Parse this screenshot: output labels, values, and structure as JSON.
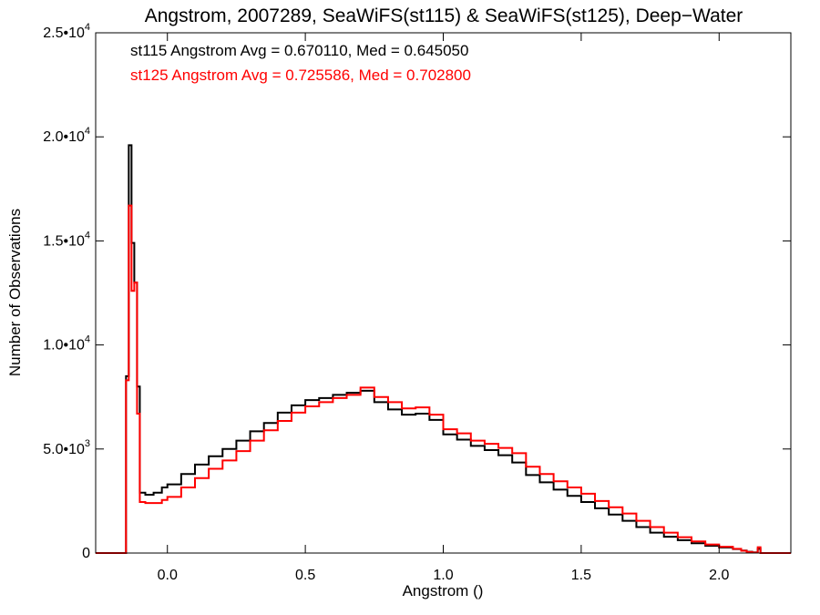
{
  "chart_data": {
    "type": "line",
    "title": "Angstrom, 2007289, SeaWiFS(st115) & SeaWiFS(st125), Deep−Water",
    "xlabel": "Angstrom ()",
    "ylabel": "Number of Observations",
    "xlim": [
      -0.26,
      2.26
    ],
    "ylim": [
      0,
      25000
    ],
    "grid": false,
    "x_ticks": [
      {
        "value": 0.0,
        "label": "0.0"
      },
      {
        "value": 0.5,
        "label": "0.5"
      },
      {
        "value": 1.0,
        "label": "1.0"
      },
      {
        "value": 1.5,
        "label": "1.5"
      },
      {
        "value": 2.0,
        "label": "2.0"
      }
    ],
    "y_ticks": [
      {
        "value": 0,
        "mant": "0",
        "exp": ""
      },
      {
        "value": 5000,
        "mant": "5.0•10",
        "exp": "3"
      },
      {
        "value": 10000,
        "mant": "1.0•10",
        "exp": "4"
      },
      {
        "value": 15000,
        "mant": "1.5•10",
        "exp": "4"
      },
      {
        "value": 20000,
        "mant": "2.0•10",
        "exp": "4"
      },
      {
        "value": 25000,
        "mant": "2.5•10",
        "exp": "4"
      }
    ],
    "annotations": [
      {
        "text": "st115 Angstrom Avg = 0.670110, Med = 0.645050",
        "color": "#000000"
      },
      {
        "text": "st125 Angstrom Avg = 0.725586, Med = 0.702800",
        "color": "#ff0000"
      }
    ],
    "series": [
      {
        "color": "#000000",
        "points": [
          [
            -0.26,
            0
          ],
          [
            -0.16,
            0
          ],
          [
            -0.15,
            8500
          ],
          [
            -0.14,
            19600
          ],
          [
            -0.13,
            14900
          ],
          [
            -0.12,
            13000
          ],
          [
            -0.11,
            8000
          ],
          [
            -0.1,
            2900
          ],
          [
            -0.08,
            2800
          ],
          [
            -0.05,
            2900
          ],
          [
            -0.02,
            3150
          ],
          [
            0.0,
            3300
          ],
          [
            0.05,
            3800
          ],
          [
            0.1,
            4250
          ],
          [
            0.15,
            4650
          ],
          [
            0.2,
            5000
          ],
          [
            0.25,
            5400
          ],
          [
            0.3,
            5850
          ],
          [
            0.35,
            6250
          ],
          [
            0.4,
            6750
          ],
          [
            0.45,
            7100
          ],
          [
            0.5,
            7350
          ],
          [
            0.55,
            7450
          ],
          [
            0.6,
            7600
          ],
          [
            0.65,
            7700
          ],
          [
            0.7,
            7800
          ],
          [
            0.75,
            7250
          ],
          [
            0.8,
            6900
          ],
          [
            0.85,
            6650
          ],
          [
            0.9,
            6700
          ],
          [
            0.95,
            6400
          ],
          [
            1.0,
            5700
          ],
          [
            1.05,
            5450
          ],
          [
            1.1,
            5150
          ],
          [
            1.15,
            4950
          ],
          [
            1.2,
            4700
          ],
          [
            1.25,
            4350
          ],
          [
            1.3,
            3750
          ],
          [
            1.35,
            3400
          ],
          [
            1.4,
            3050
          ],
          [
            1.45,
            2750
          ],
          [
            1.5,
            2450
          ],
          [
            1.55,
            2150
          ],
          [
            1.6,
            1850
          ],
          [
            1.65,
            1550
          ],
          [
            1.7,
            1250
          ],
          [
            1.75,
            980
          ],
          [
            1.8,
            780
          ],
          [
            1.85,
            620
          ],
          [
            1.9,
            470
          ],
          [
            1.95,
            350
          ],
          [
            2.0,
            270
          ],
          [
            2.05,
            190
          ],
          [
            2.08,
            120
          ],
          [
            2.1,
            60
          ],
          [
            2.12,
            30
          ],
          [
            2.14,
            200
          ],
          [
            2.15,
            0
          ],
          [
            2.26,
            0
          ]
        ]
      },
      {
        "color": "#ff0000",
        "points": [
          [
            -0.26,
            0
          ],
          [
            -0.16,
            0
          ],
          [
            -0.15,
            8300
          ],
          [
            -0.14,
            16700
          ],
          [
            -0.13,
            12600
          ],
          [
            -0.12,
            13000
          ],
          [
            -0.11,
            6700
          ],
          [
            -0.1,
            2450
          ],
          [
            -0.08,
            2400
          ],
          [
            -0.05,
            2400
          ],
          [
            -0.02,
            2550
          ],
          [
            0.0,
            2700
          ],
          [
            0.05,
            3150
          ],
          [
            0.1,
            3600
          ],
          [
            0.15,
            4050
          ],
          [
            0.2,
            4450
          ],
          [
            0.25,
            4900
          ],
          [
            0.3,
            5400
          ],
          [
            0.35,
            5900
          ],
          [
            0.4,
            6350
          ],
          [
            0.45,
            6750
          ],
          [
            0.5,
            7050
          ],
          [
            0.55,
            7250
          ],
          [
            0.6,
            7450
          ],
          [
            0.65,
            7600
          ],
          [
            0.7,
            7950
          ],
          [
            0.75,
            7500
          ],
          [
            0.8,
            7250
          ],
          [
            0.85,
            6950
          ],
          [
            0.9,
            7000
          ],
          [
            0.95,
            6650
          ],
          [
            1.0,
            5950
          ],
          [
            1.05,
            5750
          ],
          [
            1.1,
            5400
          ],
          [
            1.15,
            5250
          ],
          [
            1.2,
            5050
          ],
          [
            1.25,
            4800
          ],
          [
            1.3,
            4150
          ],
          [
            1.35,
            3800
          ],
          [
            1.4,
            3450
          ],
          [
            1.45,
            3150
          ],
          [
            1.5,
            2850
          ],
          [
            1.55,
            2500
          ],
          [
            1.6,
            2200
          ],
          [
            1.65,
            1900
          ],
          [
            1.7,
            1550
          ],
          [
            1.75,
            1250
          ],
          [
            1.8,
            980
          ],
          [
            1.85,
            760
          ],
          [
            1.9,
            560
          ],
          [
            1.95,
            410
          ],
          [
            2.0,
            300
          ],
          [
            2.05,
            200
          ],
          [
            2.08,
            110
          ],
          [
            2.1,
            50
          ],
          [
            2.12,
            20
          ],
          [
            2.14,
            280
          ],
          [
            2.15,
            0
          ],
          [
            2.26,
            0
          ]
        ]
      }
    ]
  }
}
